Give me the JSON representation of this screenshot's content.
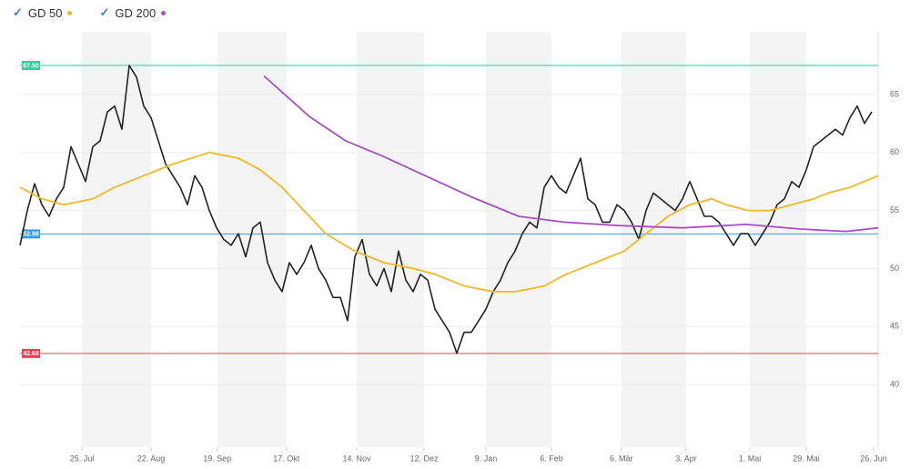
{
  "chart_data": {
    "type": "line",
    "xlim": [
      0,
      117.875
    ],
    "xticks": [
      {
        "value": 8.5,
        "label": "25. Jul"
      },
      {
        "value": 18,
        "label": "22. Aug"
      },
      {
        "value": 27.1,
        "label": "19. Sep"
      },
      {
        "value": 36.6,
        "label": "17. Okt"
      },
      {
        "value": 46.25,
        "label": "14. Nov"
      },
      {
        "value": 55.5,
        "label": "12. Dez"
      },
      {
        "value": 64,
        "label": "9. Jan"
      },
      {
        "value": 73,
        "label": "6. Feb"
      },
      {
        "value": 82.6,
        "label": "6. Mär"
      },
      {
        "value": 91.5,
        "label": "3. Apr"
      },
      {
        "value": 100.25,
        "label": "1. Mai"
      },
      {
        "value": 108,
        "label": "29. Mai"
      },
      {
        "value": 117.25,
        "label": "26. Jun"
      }
    ],
    "ylim": [
      34.6,
      70.4
    ],
    "yticks": [
      40,
      45,
      50,
      55,
      60,
      65
    ],
    "grid": true,
    "series": [
      {
        "color": "#222222",
        "x": [
          0,
          1,
          2,
          3,
          4,
          5,
          6,
          7,
          8,
          9,
          10,
          11,
          12,
          13,
          14,
          15,
          16,
          17,
          18,
          19,
          20,
          21,
          22,
          23,
          24,
          25,
          26,
          27,
          28,
          29,
          30,
          31,
          32,
          33,
          34,
          35,
          36,
          37,
          38,
          39,
          40,
          41,
          42,
          43,
          44,
          45,
          46,
          47,
          48,
          49,
          50,
          51,
          52,
          53,
          54,
          55,
          56,
          57,
          58,
          59,
          60,
          61,
          62,
          63,
          64,
          65,
          66,
          67,
          68,
          69,
          70,
          71,
          72,
          73,
          74,
          75,
          76,
          77,
          78,
          79,
          80,
          81,
          82,
          83,
          84,
          85,
          86,
          87,
          88,
          89,
          90,
          91,
          92,
          93,
          94,
          95,
          96,
          97,
          98,
          99,
          100,
          101,
          102,
          103,
          104,
          105,
          106,
          107,
          108,
          109,
          110,
          111,
          112,
          113,
          114,
          115,
          116,
          117
        ],
        "values": [
          52,
          55,
          57.3,
          55.5,
          54.5,
          56,
          57,
          60.5,
          59,
          57.5,
          60.5,
          61,
          63.5,
          64,
          62,
          67.5,
          66.5,
          64,
          63,
          61,
          59,
          58,
          57,
          55.5,
          58,
          57,
          55,
          53.5,
          52.5,
          52,
          53,
          51,
          53.5,
          54,
          50.5,
          49,
          48,
          50.5,
          49.5,
          50.5,
          52,
          50,
          49,
          47.5,
          47.5,
          45.5,
          51,
          52.5,
          49.5,
          48.5,
          50,
          48,
          51.5,
          49,
          48,
          49.5,
          49,
          46.5,
          45.5,
          44.5,
          42.7,
          44.5,
          44.5,
          45.5,
          46.5,
          48,
          49,
          50.5,
          51.5,
          53,
          54,
          53.5,
          57,
          58,
          57,
          56.5,
          58,
          59.5,
          56,
          55.5,
          54,
          54,
          55.5,
          55,
          54,
          52.5,
          55,
          56.5,
          56,
          55.5,
          55,
          56,
          57.5,
          56,
          54.5,
          54.5,
          54,
          53,
          52,
          53,
          53,
          52,
          53,
          54,
          55.5,
          56,
          57.5,
          57,
          58.5,
          60.5,
          61,
          61.5,
          62,
          61.5,
          63,
          64,
          62.5,
          63.5
        ]
      },
      {
        "name": "GD 50",
        "color": "#f2b824",
        "x": [
          0,
          3,
          6,
          10,
          13,
          17,
          21,
          26,
          30,
          33,
          36,
          39,
          42,
          46,
          50,
          54,
          57,
          61,
          65,
          68,
          72,
          75,
          79,
          83,
          86,
          89,
          92,
          95,
          97,
          100,
          103,
          106,
          109,
          111,
          114,
          117.875
        ],
        "values": [
          57,
          56,
          55.5,
          56,
          57,
          58,
          59,
          60,
          59.5,
          58.5,
          57,
          55,
          53,
          51.5,
          50.5,
          50,
          49.5,
          48.5,
          48,
          48,
          48.5,
          49.5,
          50.5,
          51.5,
          53,
          54.5,
          55.5,
          56,
          55.5,
          55,
          55,
          55.5,
          56,
          56.5,
          57,
          58
        ]
      },
      {
        "name": "GD 200",
        "color": "#a64fc4",
        "x": [
          33.5,
          39.75,
          44.75,
          49.75,
          56,
          62.25,
          68.5,
          74.75,
          82.25,
          91,
          99.75,
          107.25,
          113.5,
          117.875
        ],
        "values": [
          66.6,
          63.1,
          61,
          59.7,
          57.9,
          56.1,
          54.5,
          54,
          53.7,
          53.5,
          53.8,
          53.4,
          53.2,
          53.5
        ]
      }
    ],
    "levels": [
      {
        "value": 67.5,
        "label": "67.50",
        "color": "#2ecc9a"
      },
      {
        "value": 52.98,
        "label": "52.98",
        "color": "#3a9be0"
      },
      {
        "value": 42.68,
        "label": "42.68",
        "color": "#e84050"
      }
    ]
  }
}
